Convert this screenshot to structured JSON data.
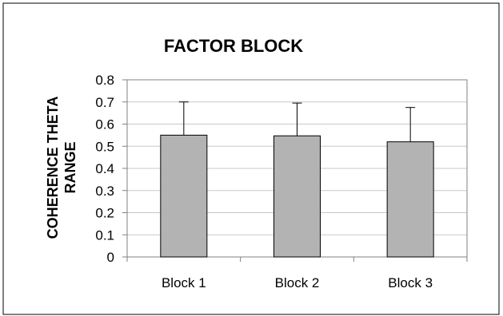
{
  "chart_data": {
    "type": "bar",
    "title": "FACTOR BLOCK",
    "xlabel": "",
    "ylabel_lines": [
      "COHERENCE THETA",
      "RANGE"
    ],
    "categories": [
      "Block 1",
      "Block 2",
      "Block 3"
    ],
    "values": [
      0.55,
      0.547,
      0.52
    ],
    "error_upper": [
      0.7,
      0.695,
      0.675
    ],
    "ylim": [
      0,
      0.8
    ],
    "yticks": [
      "0",
      "0.1",
      "0.2",
      "0.3",
      "0.4",
      "0.5",
      "0.6",
      "0.7",
      "0.8"
    ],
    "grid": true,
    "legend": "none",
    "colors": {
      "bar_fill": "#b3b3b3",
      "bar_stroke": "#000000",
      "gridline": "#c8c8c8",
      "axis": "#808080",
      "frame": "#000000"
    }
  }
}
